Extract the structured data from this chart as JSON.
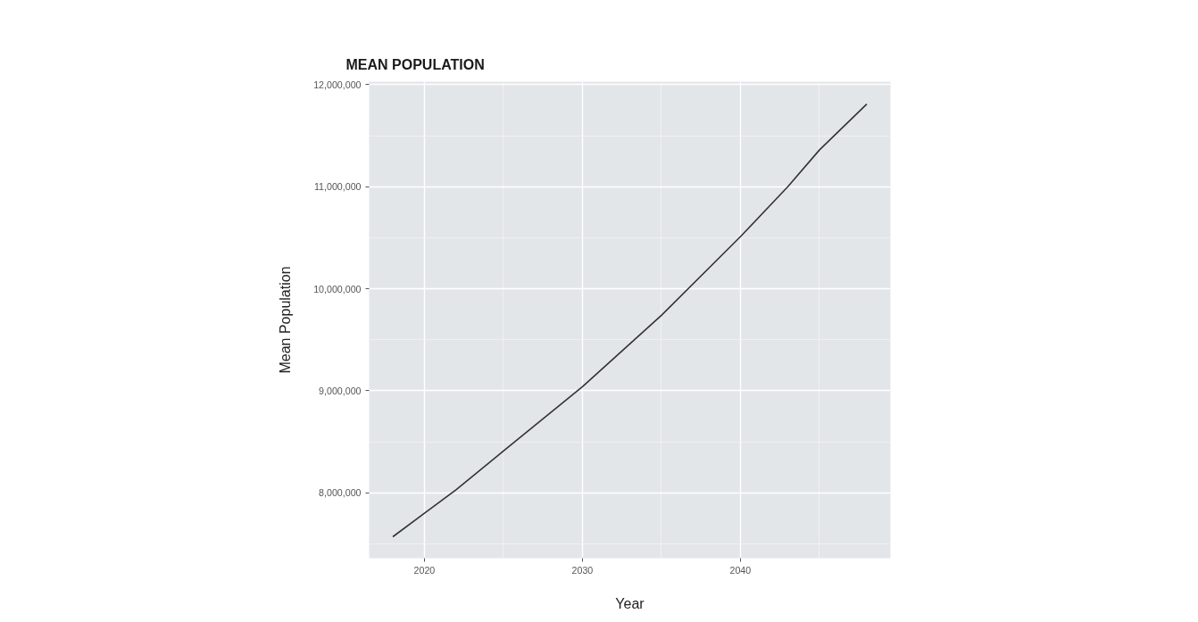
{
  "chart_data": {
    "type": "line",
    "title": "MEAN POPULATION",
    "xlabel": "Year",
    "ylabel": "Mean Population",
    "x": [
      2018,
      2020,
      2022,
      2025,
      2030,
      2035,
      2040,
      2043,
      2045,
      2048
    ],
    "series": [
      {
        "color": "#333333",
        "values": [
          7570000,
          7800000,
          8030000,
          8410000,
          9040000,
          9740000,
          10510000,
          11000000,
          11360000,
          11810000
        ]
      }
    ],
    "xlim": [
      2016.5,
      2049.5
    ],
    "ylim": [
      7360000,
      12030000
    ],
    "xticks": [
      2020,
      2030,
      2040,
      {
        "value": 2025,
        "label": null
      },
      {
        "value": 2035,
        "label": null
      },
      {
        "value": 2045,
        "label": null
      }
    ],
    "yticks": [
      {
        "value": 8000000,
        "label": "8,000,000"
      },
      {
        "value": 9000000,
        "label": "9,000,000"
      },
      {
        "value": 10000000,
        "label": "10,000,000"
      },
      {
        "value": 11000000,
        "label": "11,000,000"
      },
      {
        "value": 12000000,
        "label": "12,000,000"
      },
      {
        "value": 7500000,
        "label": null
      },
      {
        "value": 8500000,
        "label": null
      },
      {
        "value": 9500000,
        "label": null
      },
      {
        "value": 10500000,
        "label": null
      },
      {
        "value": 11500000,
        "label": null
      }
    ],
    "grid": true,
    "marker": "none",
    "line_style": "solid"
  }
}
